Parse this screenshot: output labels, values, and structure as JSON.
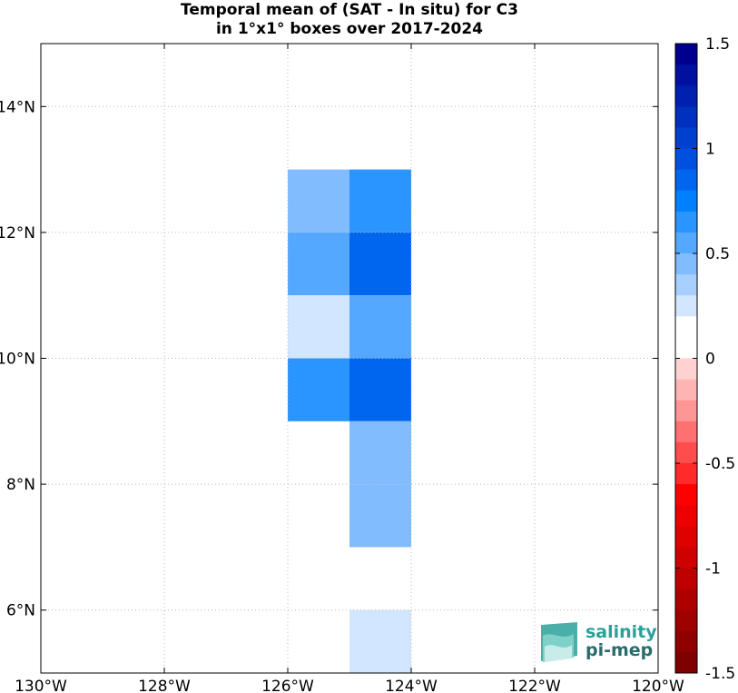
{
  "title": {
    "line1": "Temporal mean of (SAT - In situ) for C3",
    "line2": "in 1°x1° boxes over 2017-2024"
  },
  "map": {
    "lon_range": [
      -130,
      -120
    ],
    "lat_range": [
      5,
      15
    ],
    "lon_ticks": [
      -130,
      -128,
      -126,
      -124,
      -122,
      -120
    ],
    "lon_labels": [
      "130°W",
      "128°W",
      "126°W",
      "124°W",
      "122°W",
      "120°W"
    ],
    "lat_ticks": [
      6,
      8,
      10,
      12,
      14
    ],
    "lat_labels": [
      "6°N",
      "8°N",
      "10°N",
      "12°N",
      "14°N"
    ],
    "grid": "dotted"
  },
  "chart_data": {
    "type": "heatmap",
    "box_size_deg": 1,
    "cells": [
      {
        "lon": -126,
        "lat": 12,
        "value": 0.5
      },
      {
        "lon": -125,
        "lat": 12,
        "value": 0.7
      },
      {
        "lon": -126,
        "lat": 11,
        "value": 0.6
      },
      {
        "lon": -125,
        "lat": 11,
        "value": 0.85
      },
      {
        "lon": -126,
        "lat": 10,
        "value": 0.25
      },
      {
        "lon": -125,
        "lat": 10,
        "value": 0.6
      },
      {
        "lon": -126,
        "lat": 9,
        "value": 0.7
      },
      {
        "lon": -125,
        "lat": 9,
        "value": 0.85
      },
      {
        "lon": -125,
        "lat": 8,
        "value": 0.5
      },
      {
        "lon": -125,
        "lat": 7,
        "value": 0.5
      },
      {
        "lon": -125,
        "lat": 5,
        "value": 0.25
      }
    ]
  },
  "colorbar": {
    "range": [
      -1.5,
      1.5
    ],
    "ticks": [
      1.5,
      1,
      0.5,
      0,
      -0.5,
      -1,
      -1.5
    ],
    "tick_labels": [
      "1.5",
      "1",
      "0.5",
      "0",
      "-0.5",
      "-1",
      "-1.5"
    ],
    "colors": [
      "#00008f",
      "#00109f",
      "#0020af",
      "#0030bf",
      "#0040cf",
      "#0050df",
      "#0066ee",
      "#0080ff",
      "#2a94ff",
      "#55a8ff",
      "#80bcff",
      "#a8d0ff",
      "#d2e6ff",
      "#ffffff",
      "#ffffff",
      "#ffd2d2",
      "#ffb4b4",
      "#ff9696",
      "#ff7070",
      "#ff4d4d",
      "#ff2a2a",
      "#ff0000",
      "#ef0000",
      "#df0000",
      "#cf0000",
      "#bf0000",
      "#af0000",
      "#9f0000",
      "#8f0000",
      "#7f0000"
    ]
  },
  "logo": {
    "line1": "salinity",
    "line2": "pi-mep",
    "color": "#2aa198"
  }
}
